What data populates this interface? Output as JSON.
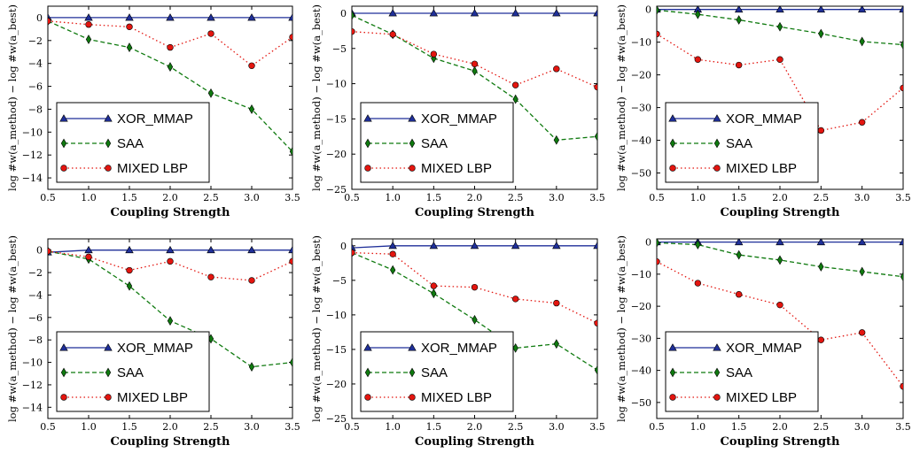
{
  "chart_data": [
    {
      "type": "line",
      "x": [
        0.5,
        1.0,
        1.5,
        2.0,
        2.5,
        3.0,
        3.5
      ],
      "xlim": [
        0.5,
        3.5
      ],
      "ylim": [
        -15,
        1
      ],
      "xticks": [
        "0.5",
        "1.0",
        "1.5",
        "2.0",
        "2.5",
        "3.0",
        "3.5"
      ],
      "yticks": [
        0,
        -2,
        -4,
        -6,
        -8,
        -10,
        -12,
        -14
      ],
      "xlabel": "Coupling Strength",
      "ylabel": "log #w(a_method) − log #w(a_best)",
      "legend": "lower-left",
      "series": [
        {
          "name": "XOR_MMAP",
          "values": [
            0,
            0,
            0,
            0,
            0,
            0,
            0
          ]
        },
        {
          "name": "SAA",
          "values": [
            -0.3,
            -1.9,
            -2.6,
            -4.3,
            -6.6,
            -8.0,
            -11.7
          ]
        },
        {
          "name": "MIXED LBP",
          "values": [
            -0.3,
            -0.6,
            -0.8,
            -2.6,
            -1.4,
            -4.2,
            -1.7
          ]
        }
      ]
    },
    {
      "type": "line",
      "x": [
        0.5,
        1.0,
        1.5,
        2.0,
        2.5,
        3.0,
        3.5
      ],
      "xlim": [
        0.5,
        3.5
      ],
      "ylim": [
        -25,
        1
      ],
      "xticks": [
        "0.5",
        "1.0",
        "1.5",
        "2.0",
        "2.5",
        "3.0",
        "3.5"
      ],
      "yticks": [
        0,
        -5,
        -10,
        -15,
        -20,
        -25
      ],
      "xlabel": "Coupling Strength",
      "ylabel": "log #w(a_method) − log #w(a_best)",
      "legend": "lower-left",
      "series": [
        {
          "name": "XOR_MMAP",
          "values": [
            0,
            0,
            0,
            0,
            0,
            0,
            0
          ]
        },
        {
          "name": "SAA",
          "values": [
            -0.3,
            -3.0,
            -6.4,
            -8.2,
            -12.2,
            -18.0,
            -17.5
          ]
        },
        {
          "name": "MIXED LBP",
          "values": [
            -2.6,
            -3.0,
            -5.8,
            -7.2,
            -10.2,
            -7.9,
            -10.5
          ]
        }
      ]
    },
    {
      "type": "line",
      "x": [
        0.5,
        1.0,
        1.5,
        2.0,
        2.5,
        3.0,
        3.5
      ],
      "xlim": [
        0.5,
        3.5
      ],
      "ylim": [
        -55,
        1
      ],
      "xticks": [
        "0.5",
        "1.0",
        "1.5",
        "2.0",
        "2.5",
        "3.0",
        "3.5"
      ],
      "yticks": [
        0,
        -10,
        -20,
        -30,
        -40,
        -50
      ],
      "xlabel": "Coupling Strength",
      "ylabel": "log #w(a_method) − log #w(a_best)",
      "legend": "lower-left",
      "series": [
        {
          "name": "XOR_MMAP",
          "values": [
            0,
            0,
            0,
            0,
            0,
            0,
            0
          ]
        },
        {
          "name": "SAA",
          "values": [
            -0.2,
            -1.5,
            -3.2,
            -5.3,
            -7.4,
            -9.8,
            -10.8
          ]
        },
        {
          "name": "MIXED LBP",
          "values": [
            -7.5,
            -15.3,
            -17.0,
            -15.3,
            -37.0,
            -34.5,
            -24.0
          ]
        }
      ]
    },
    {
      "type": "line",
      "x": [
        0.5,
        1.0,
        1.5,
        2.0,
        2.5,
        3.0,
        3.5
      ],
      "xlim": [
        0.5,
        3.5
      ],
      "ylim": [
        -15,
        1
      ],
      "xticks": [
        "0.5",
        "1.0",
        "1.5",
        "2.0",
        "2.5",
        "3.0",
        "3.5"
      ],
      "yticks": [
        0,
        -2,
        -4,
        -6,
        -8,
        -10,
        -12,
        -14
      ],
      "xlabel": "Coupling Strength",
      "ylabel": "log #w(a_method) − log #w(a_best)",
      "legend": "lower-left",
      "series": [
        {
          "name": "XOR_MMAP",
          "values": [
            -0.2,
            0,
            0,
            0,
            0,
            0,
            0
          ]
        },
        {
          "name": "SAA",
          "values": [
            -0.1,
            -0.8,
            -3.2,
            -6.3,
            -7.9,
            -10.4,
            -10.0
          ]
        },
        {
          "name": "MIXED LBP",
          "values": [
            -0.1,
            -0.6,
            -1.8,
            -1.0,
            -2.4,
            -2.7,
            -1.0
          ]
        }
      ]
    },
    {
      "type": "line",
      "x": [
        0.5,
        1.0,
        1.5,
        2.0,
        2.5,
        3.0,
        3.5
      ],
      "xlim": [
        0.5,
        3.5
      ],
      "ylim": [
        -25,
        1
      ],
      "xticks": [
        "0.5",
        "1.0",
        "1.5",
        "2.0",
        "2.5",
        "3.0",
        "3.5"
      ],
      "yticks": [
        0,
        -5,
        -10,
        -15,
        -20,
        -25
      ],
      "xlabel": "Coupling Strength",
      "ylabel": "log #w(a_method) − log #w(a_best)",
      "legend": "lower-left",
      "series": [
        {
          "name": "XOR_MMAP",
          "values": [
            -0.3,
            0,
            0,
            0,
            0,
            0,
            0
          ]
        },
        {
          "name": "SAA",
          "values": [
            -1.0,
            -3.5,
            -6.9,
            -10.7,
            -14.8,
            -14.2,
            -18.0
          ]
        },
        {
          "name": "MIXED LBP",
          "values": [
            -1.0,
            -1.2,
            -5.8,
            -6.0,
            -7.7,
            -8.3,
            -11.2
          ]
        }
      ]
    },
    {
      "type": "line",
      "x": [
        0.5,
        1.0,
        1.5,
        2.0,
        2.5,
        3.0,
        3.5
      ],
      "xlim": [
        0.5,
        3.5
      ],
      "ylim": [
        -55,
        1
      ],
      "xticks": [
        "0.5",
        "1.0",
        "1.5",
        "2.0",
        "2.5",
        "3.0",
        "3.5"
      ],
      "yticks": [
        0,
        -10,
        -20,
        -30,
        -40,
        -50
      ],
      "xlabel": "Coupling Strength",
      "ylabel": "log #w(a_method) − log #w(a_best)",
      "legend": "lower-left",
      "series": [
        {
          "name": "XOR_MMAP",
          "values": [
            0,
            0,
            0,
            0,
            0,
            0,
            0
          ]
        },
        {
          "name": "SAA",
          "values": [
            -0.2,
            -0.8,
            -4.0,
            -5.6,
            -7.7,
            -9.2,
            -10.8
          ]
        },
        {
          "name": "MIXED LBP",
          "values": [
            -6.1,
            -12.8,
            -16.3,
            -19.6,
            -30.5,
            -28.2,
            -45.0
          ]
        }
      ]
    }
  ],
  "series_styles": [
    {
      "color": "#1f2f99",
      "dash": "",
      "marker": "triangle"
    },
    {
      "color": "#0f7a0f",
      "dash": "5,3",
      "marker": "diamond"
    },
    {
      "color": "#e3150f",
      "dash": "1.5,3",
      "marker": "circle"
    }
  ]
}
